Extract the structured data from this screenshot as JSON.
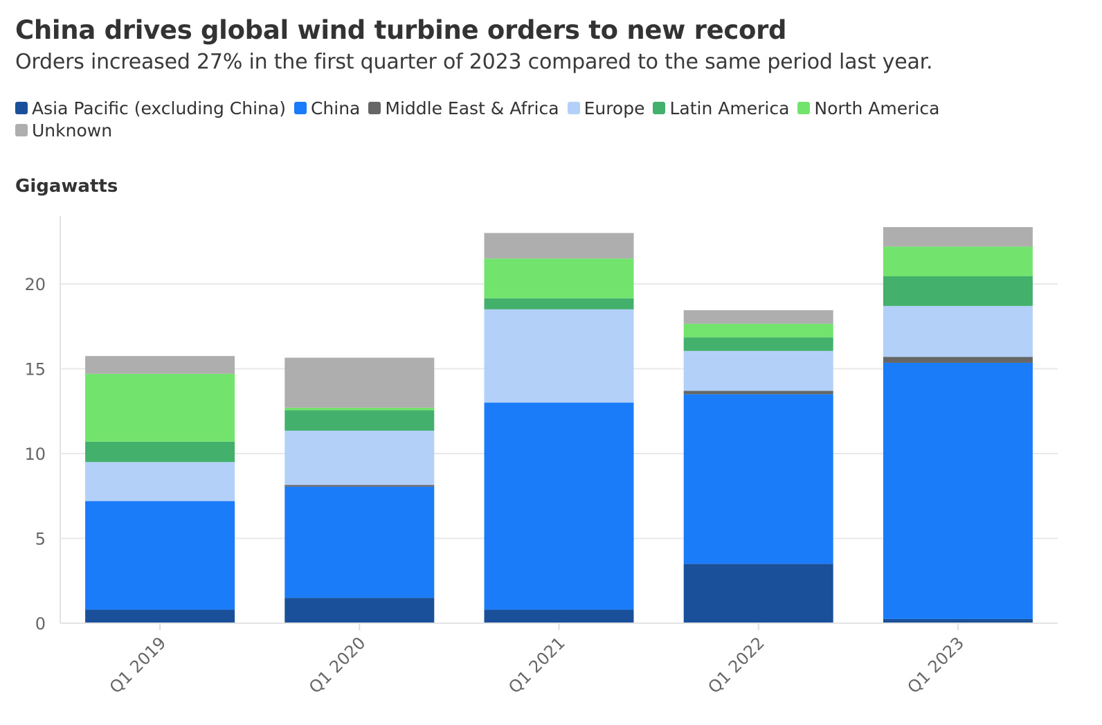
{
  "header": {
    "title": "China drives global wind turbine orders to new record",
    "subtitle": "Orders increased 27% in the first quarter of 2023 compared to the same period last year."
  },
  "legend": {
    "rows": [
      [
        {
          "label": "Asia Pacific (excluding China)",
          "color": "#1a4f9a"
        },
        {
          "label": "China",
          "color": "#1a7cf8"
        },
        {
          "label": "Middle East & Africa",
          "color": "#666666"
        },
        {
          "label": "Europe",
          "color": "#b2d0f8"
        },
        {
          "label": "Latin America",
          "color": "#43b06b"
        },
        {
          "label": "North America",
          "color": "#72e46e"
        }
      ],
      [
        {
          "label": "Unknown",
          "color": "#aeaeae"
        }
      ]
    ]
  },
  "chart_data": {
    "type": "bar",
    "stacked": true,
    "ylabel": "Gigawatts",
    "ylim": [
      0,
      24
    ],
    "yticks": [
      0,
      5,
      10,
      15,
      20
    ],
    "grid": true,
    "categories": [
      "Q1 2019",
      "Q1 2020",
      "Q1 2021",
      "Q1 2022",
      "Q1 2023"
    ],
    "series": [
      {
        "name": "Asia Pacific (excluding China)",
        "color": "#1a4f9a",
        "values": [
          0.8,
          1.5,
          0.8,
          3.5,
          0.25
        ]
      },
      {
        "name": "China",
        "color": "#1a7cf8",
        "values": [
          6.4,
          6.55,
          12.2,
          10.0,
          15.1
        ]
      },
      {
        "name": "Middle East & Africa",
        "color": "#666666",
        "values": [
          0.0,
          0.1,
          0.0,
          0.2,
          0.35
        ]
      },
      {
        "name": "Europe",
        "color": "#b2d0f8",
        "values": [
          2.3,
          3.2,
          5.5,
          2.35,
          3.0
        ]
      },
      {
        "name": "Latin America",
        "color": "#43b06b",
        "values": [
          1.2,
          1.2,
          0.65,
          0.8,
          1.75
        ]
      },
      {
        "name": "North America",
        "color": "#72e46e",
        "values": [
          4.0,
          0.15,
          2.35,
          0.8,
          1.75
        ]
      },
      {
        "name": "Unknown",
        "color": "#aeaeae",
        "values": [
          1.05,
          2.95,
          1.5,
          0.8,
          1.15
        ]
      }
    ]
  }
}
